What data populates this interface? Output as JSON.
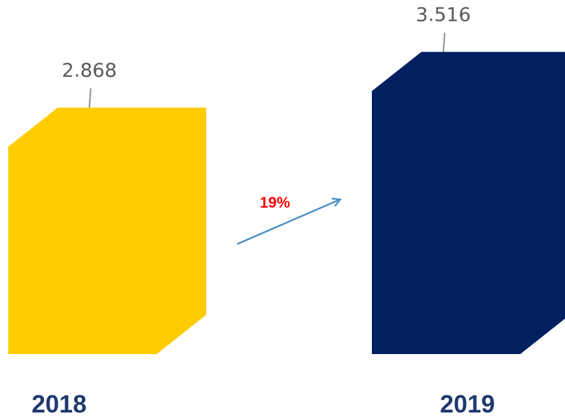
{
  "chart_data": {
    "type": "bar",
    "categories": [
      "2018",
      "2019"
    ],
    "values": [
      2.868,
      3.516
    ],
    "colors": [
      "#ffcc00",
      "#002060"
    ],
    "annotation": "19%"
  }
}
